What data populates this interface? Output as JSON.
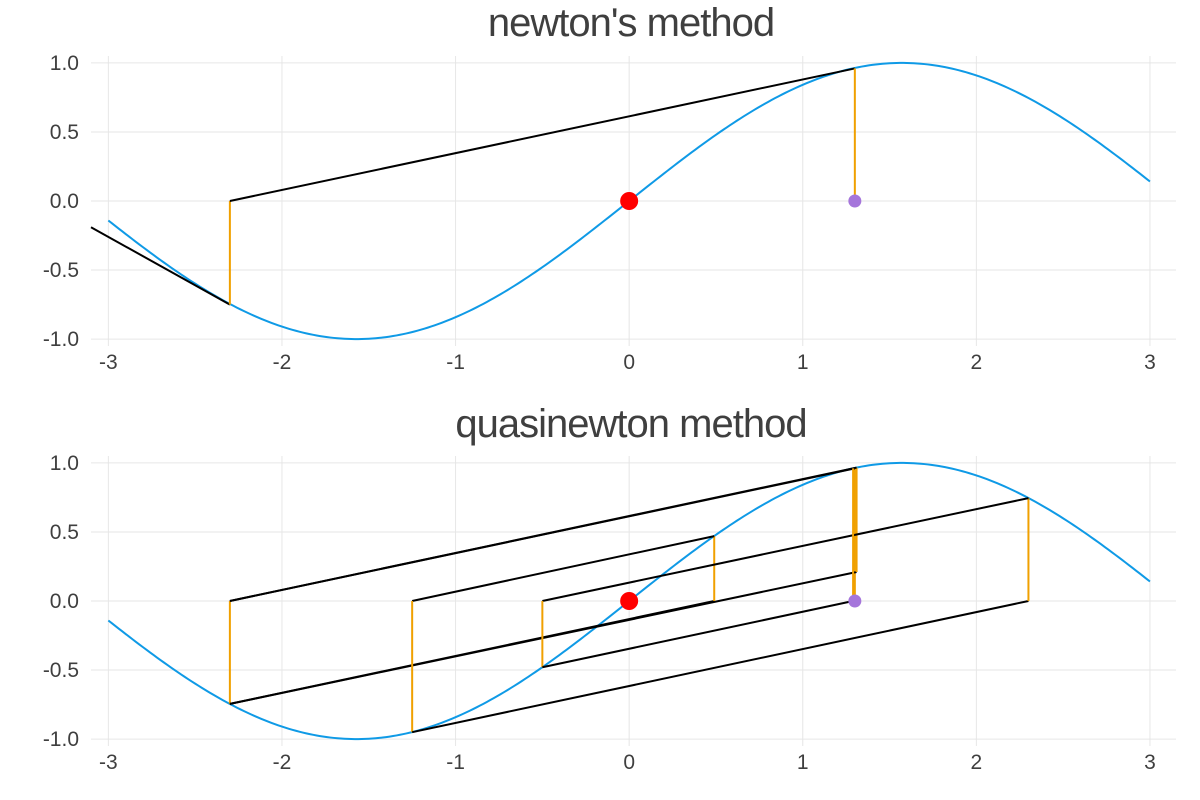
{
  "chart_data": [
    {
      "type": "line",
      "title": "newton's method",
      "xlabel": "",
      "ylabel": "",
      "xlim": [
        -3.1,
        3.15
      ],
      "ylim": [
        -1.05,
        1.05
      ],
      "xticks": [
        -3,
        -2,
        -1,
        0,
        1,
        2,
        3
      ],
      "yticks": [
        -1.0,
        -0.5,
        0.0,
        0.5,
        1.0
      ],
      "xtick_labels": [
        "-3",
        "-2",
        "-1",
        "0",
        "1",
        "2",
        "3"
      ],
      "ytick_labels": [
        "-1.0",
        "-0.5",
        "0.0",
        "0.5",
        "1.0"
      ],
      "grid": true,
      "legend": "none",
      "curve": {
        "function": "sin(x)",
        "x_range": [
          -3,
          3
        ],
        "color": "#0f9ae6"
      },
      "segments": [
        {
          "role": "tangent",
          "color": "#000000",
          "points": [
            [
              -3.1,
              -0.19
            ],
            [
              -2.3,
              -0.75
            ]
          ]
        },
        {
          "role": "drop",
          "color": "#f0a000",
          "points": [
            [
              -2.3,
              -0.75
            ],
            [
              -2.3,
              0
            ]
          ]
        },
        {
          "role": "secant",
          "color": "#000000",
          "points": [
            [
              -2.3,
              0
            ],
            [
              1.3,
              0.96
            ]
          ]
        },
        {
          "role": "drop",
          "color": "#f0a000",
          "points": [
            [
              1.3,
              0.96
            ],
            [
              1.3,
              0
            ]
          ]
        }
      ],
      "markers": [
        {
          "role": "root",
          "x": 0,
          "y": 0,
          "color": "#ff0000",
          "size": 9
        },
        {
          "role": "start",
          "x": 1.3,
          "y": 0,
          "color": "#a575db",
          "size": 6.5
        }
      ]
    },
    {
      "type": "line",
      "title": "quasinewton method",
      "xlabel": "",
      "ylabel": "",
      "xlim": [
        -3.1,
        3.15
      ],
      "ylim": [
        -1.05,
        1.05
      ],
      "xticks": [
        -3,
        -2,
        -1,
        0,
        1,
        2,
        3
      ],
      "yticks": [
        -1.0,
        -0.5,
        0.0,
        0.5,
        1.0
      ],
      "xtick_labels": [
        "-3",
        "-2",
        "-1",
        "0",
        "1",
        "2",
        "3"
      ],
      "ytick_labels": [
        "-1.0",
        "-0.5",
        "0.0",
        "0.5",
        "1.0"
      ],
      "grid": true,
      "legend": "none",
      "curve": {
        "function": "sin(x)",
        "x_range": [
          -3,
          3
        ],
        "color": "#0f9ae6"
      },
      "segments": [
        {
          "role": "drop",
          "color": "#f0a000",
          "points": [
            [
              1.3,
              0
            ],
            [
              1.3,
              0.96
            ]
          ]
        },
        {
          "role": "step",
          "color": "#000000",
          "points": [
            [
              1.3,
              0.96
            ],
            [
              -2.3,
              0
            ]
          ]
        },
        {
          "role": "drop",
          "color": "#f0a000",
          "points": [
            [
              -2.3,
              0
            ],
            [
              -2.3,
              -0.745
            ]
          ]
        },
        {
          "role": "step",
          "color": "#000000",
          "points": [
            [
              -2.3,
              -0.745
            ],
            [
              1.31,
              0.21
            ]
          ]
        },
        {
          "role": "drop",
          "color": "#f0a000",
          "points": [
            [
              1.31,
              0.21
            ],
            [
              1.31,
              0.966
            ]
          ]
        },
        {
          "role": "step",
          "color": "#000000",
          "points": [
            [
              1.31,
              0.966
            ],
            [
              -2.3,
              0.0
            ]
          ]
        },
        {
          "role": "step",
          "color": "#000000",
          "points": [
            [
              -2.3,
              -0.745
            ],
            [
              0.49,
              0.0
            ]
          ]
        },
        {
          "role": "drop",
          "color": "#f0a000",
          "points": [
            [
              0.49,
              0.0
            ],
            [
              0.49,
              0.47
            ]
          ]
        },
        {
          "role": "step",
          "color": "#000000",
          "points": [
            [
              0.49,
              0.47
            ],
            [
              -1.25,
              0.0
            ]
          ]
        },
        {
          "role": "drop",
          "color": "#f0a000",
          "points": [
            [
              -1.25,
              0.0
            ],
            [
              -1.25,
              -0.95
            ]
          ]
        },
        {
          "role": "step",
          "color": "#000000",
          "points": [
            [
              -1.25,
              -0.95
            ],
            [
              2.3,
              0.0
            ]
          ]
        },
        {
          "role": "drop",
          "color": "#f0a000",
          "points": [
            [
              2.3,
              0.0
            ],
            [
              2.3,
              0.745
            ]
          ]
        },
        {
          "role": "step",
          "color": "#000000",
          "points": [
            [
              2.3,
              0.745
            ],
            [
              -0.5,
              0.0
            ]
          ]
        },
        {
          "role": "drop",
          "color": "#f0a000",
          "points": [
            [
              -0.5,
              0.0
            ],
            [
              -0.5,
              -0.48
            ]
          ]
        },
        {
          "role": "step",
          "color": "#000000",
          "points": [
            [
              -0.5,
              -0.48
            ],
            [
              1.29,
              0.0
            ]
          ]
        },
        {
          "role": "drop",
          "color": "#f0a000",
          "points": [
            [
              1.29,
              0.0
            ],
            [
              1.29,
              0.96
            ]
          ]
        }
      ],
      "markers": [
        {
          "role": "root",
          "x": 0,
          "y": 0,
          "color": "#ff0000",
          "size": 9
        },
        {
          "role": "start",
          "x": 1.3,
          "y": 0,
          "color": "#a575db",
          "size": 6.5
        }
      ]
    }
  ]
}
